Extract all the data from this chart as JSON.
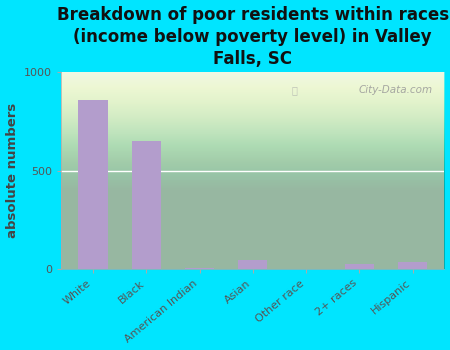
{
  "title": "Breakdown of poor residents within races\n(income below poverty level) in Valley\nFalls, SC",
  "categories": [
    "White",
    "Black",
    "American Indian",
    "Asian",
    "Other race",
    "2+ races",
    "Hispanic"
  ],
  "values": [
    860,
    650,
    5,
    45,
    2,
    25,
    35
  ],
  "bar_color": "#b39dcc",
  "ylabel": "absolute numbers",
  "ylim": [
    0,
    1000
  ],
  "yticks": [
    0,
    500,
    1000
  ],
  "background_outer": "#00e5ff",
  "watermark": "City-Data.com",
  "title_fontsize": 12,
  "ylabel_fontsize": 9.5,
  "tick_fontsize": 8
}
